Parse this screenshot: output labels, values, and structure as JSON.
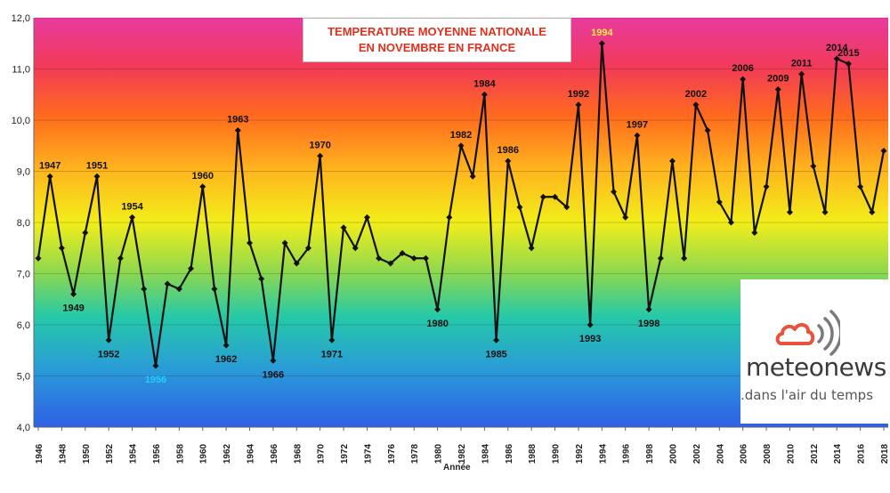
{
  "chart_data": {
    "type": "line",
    "title_lines": [
      "TEMPERATURE MOYENNE NATIONALE",
      "EN NOVEMBRE EN FRANCE"
    ],
    "xlabel": "Année",
    "ylabel": "",
    "ylim": [
      4.0,
      12.0
    ],
    "yticks": [
      "4,0",
      "5,0",
      "6,0",
      "7,0",
      "8,0",
      "9,0",
      "10,0",
      "11,0",
      "12,0"
    ],
    "xticks": [
      "1946",
      "1948",
      "1950",
      "1952",
      "1954",
      "1956",
      "1958",
      "1960",
      "1962",
      "1964",
      "1966",
      "1968",
      "1970",
      "1972",
      "1974",
      "1976",
      "1978",
      "1980",
      "1982",
      "1984",
      "1986",
      "1988",
      "1990",
      "1992",
      "1994",
      "1996",
      "1998",
      "2000",
      "2002",
      "2004",
      "2006",
      "2008",
      "2010",
      "2012",
      "2014",
      "2016",
      "2018"
    ],
    "grid": true,
    "background": "vertical rainbow gradient from blue (4) to magenta (12)",
    "x": [
      1946,
      1947,
      1948,
      1949,
      1950,
      1951,
      1952,
      1953,
      1954,
      1955,
      1956,
      1957,
      1958,
      1959,
      1960,
      1961,
      1962,
      1963,
      1964,
      1965,
      1966,
      1967,
      1968,
      1969,
      1970,
      1971,
      1972,
      1973,
      1974,
      1975,
      1976,
      1977,
      1978,
      1979,
      1980,
      1981,
      1982,
      1983,
      1984,
      1985,
      1986,
      1987,
      1988,
      1989,
      1990,
      1991,
      1992,
      1993,
      1994,
      1995,
      1996,
      1997,
      1998,
      1999,
      2000,
      2001,
      2002,
      2003,
      2004,
      2005,
      2006,
      2007,
      2008,
      2009,
      2010,
      2011,
      2012,
      2013,
      2014,
      2015,
      2016,
      2017,
      2018
    ],
    "values": [
      7.3,
      8.9,
      7.5,
      6.6,
      7.8,
      8.9,
      5.7,
      7.3,
      8.1,
      6.7,
      5.2,
      6.8,
      6.7,
      7.1,
      8.7,
      6.7,
      5.6,
      9.8,
      7.6,
      6.9,
      5.3,
      7.6,
      7.2,
      7.5,
      9.3,
      5.7,
      7.9,
      7.5,
      8.1,
      7.3,
      7.2,
      7.4,
      7.3,
      7.3,
      6.3,
      8.1,
      9.5,
      8.9,
      10.5,
      5.7,
      9.2,
      8.3,
      7.5,
      8.5,
      8.5,
      8.3,
      10.3,
      6.0,
      11.5,
      8.6,
      8.1,
      9.7,
      6.3,
      7.3,
      9.2,
      7.3,
      10.3,
      9.8,
      8.4,
      8.0,
      10.8,
      7.8,
      8.7,
      10.6,
      8.2,
      10.9,
      9.1,
      8.2,
      11.2,
      11.1,
      8.7,
      8.2,
      9.4
    ],
    "annotations": [
      {
        "year": 1947,
        "label": "1947",
        "position": "above"
      },
      {
        "year": 1949,
        "label": "1949",
        "position": "below"
      },
      {
        "year": 1951,
        "label": "1951",
        "position": "above"
      },
      {
        "year": 1952,
        "label": "1952",
        "position": "below"
      },
      {
        "year": 1954,
        "label": "1954",
        "position": "above"
      },
      {
        "year": 1956,
        "label": "1956",
        "position": "below",
        "color": "#22ccff"
      },
      {
        "year": 1960,
        "label": "1960",
        "position": "above"
      },
      {
        "year": 1962,
        "label": "1962",
        "position": "below"
      },
      {
        "year": 1963,
        "label": "1963",
        "position": "above"
      },
      {
        "year": 1966,
        "label": "1966",
        "position": "below"
      },
      {
        "year": 1970,
        "label": "1970",
        "position": "above"
      },
      {
        "year": 1971,
        "label": "1971",
        "position": "below"
      },
      {
        "year": 1980,
        "label": "1980",
        "position": "below"
      },
      {
        "year": 1982,
        "label": "1982",
        "position": "above"
      },
      {
        "year": 1984,
        "label": "1984",
        "position": "above"
      },
      {
        "year": 1985,
        "label": "1985",
        "position": "below"
      },
      {
        "year": 1986,
        "label": "1986",
        "position": "above"
      },
      {
        "year": 1992,
        "label": "1992",
        "position": "above"
      },
      {
        "year": 1993,
        "label": "1993",
        "position": "below"
      },
      {
        "year": 1994,
        "label": "1994",
        "position": "above",
        "color": "#ffee44"
      },
      {
        "year": 1997,
        "label": "1997",
        "position": "above"
      },
      {
        "year": 1998,
        "label": "1998",
        "position": "below"
      },
      {
        "year": 2002,
        "label": "2002",
        "position": "above"
      },
      {
        "year": 2006,
        "label": "2006",
        "position": "above"
      },
      {
        "year": 2009,
        "label": "2009",
        "position": "above"
      },
      {
        "year": 2011,
        "label": "2011",
        "position": "above"
      },
      {
        "year": 2014,
        "label": "2014",
        "position": "above"
      },
      {
        "year": 2015,
        "label": "2015",
        "position": "above"
      }
    ],
    "title_color": "#e0301e",
    "line_color": "#111111"
  },
  "logo": {
    "name": "meteonews",
    "tagline": ".dans l'air du temps",
    "icon": "cloud-signal-icon",
    "accent": "#e8533a"
  }
}
